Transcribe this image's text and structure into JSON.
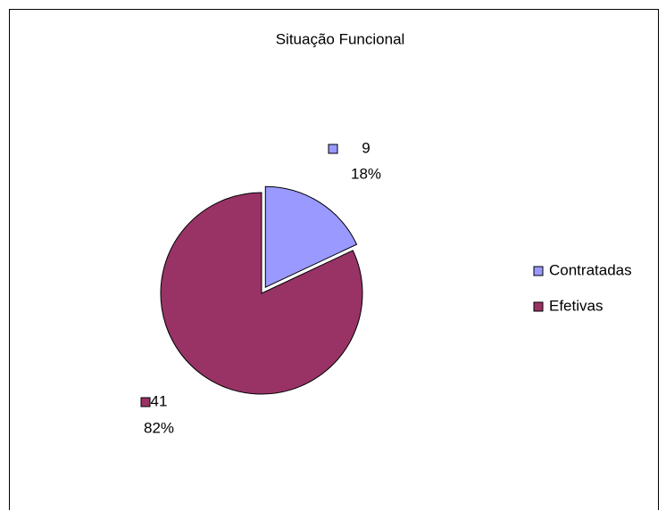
{
  "chart_data": {
    "type": "pie",
    "title": "Situação Funcional",
    "categories": [
      "Contratadas",
      "Efetivas"
    ],
    "values": [
      9,
      41
    ],
    "percent_labels": [
      "18%",
      "82%"
    ],
    "colors": [
      "#9999ff",
      "#993366"
    ],
    "legend": "right"
  }
}
